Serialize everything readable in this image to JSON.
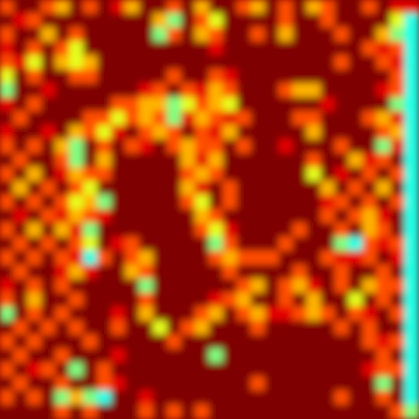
{
  "chart_data": {
    "type": "heatmap",
    "tick_labels": false,
    "zlim": [
      0,
      10
    ],
    "cells": [
      [
        8,
        10,
        10,
        8,
        7,
        10,
        8,
        10,
        9,
        7,
        10,
        10,
        8,
        10,
        7,
        10,
        10,
        8,
        7,
        10,
        8,
        10,
        7,
        8,
        10,
        10,
        8,
        10,
        9,
        9
      ],
      [
        10,
        9,
        8,
        10,
        10,
        10,
        10,
        10,
        10,
        10,
        10,
        7,
        5,
        10,
        8,
        6,
        10,
        10,
        10,
        10,
        8,
        10,
        10,
        8,
        10,
        10,
        10,
        10,
        6,
        4
      ],
      [
        8,
        10,
        10,
        7,
        10,
        8,
        10,
        10,
        10,
        10,
        10,
        5,
        8,
        10,
        7,
        8,
        10,
        10,
        8,
        10,
        7,
        10,
        10,
        10,
        8,
        10,
        10,
        7,
        5,
        4
      ],
      [
        9,
        10,
        8,
        10,
        8,
        6,
        10,
        10,
        10,
        10,
        10,
        10,
        10,
        10,
        10,
        9,
        10,
        10,
        10,
        10,
        10,
        10,
        10,
        10,
        10,
        10,
        8,
        9,
        8,
        4
      ],
      [
        8,
        9,
        6,
        10,
        7,
        6,
        7,
        10,
        10,
        10,
        10,
        10,
        10,
        10,
        10,
        10,
        10,
        10,
        10,
        10,
        10,
        10,
        10,
        10,
        8,
        10,
        10,
        8,
        9,
        4
      ],
      [
        6,
        10,
        8,
        10,
        10,
        8,
        8,
        10,
        10,
        10,
        10,
        10,
        8,
        10,
        10,
        8,
        9,
        10,
        10,
        10,
        10,
        10,
        10,
        10,
        10,
        10,
        10,
        10,
        8,
        4
      ],
      [
        5,
        10,
        10,
        9,
        10,
        10,
        10,
        10,
        10,
        10,
        9,
        8,
        10,
        8,
        9,
        7,
        8,
        10,
        10,
        10,
        8,
        7,
        7,
        10,
        10,
        10,
        10,
        9,
        8,
        4
      ],
      [
        9,
        10,
        8,
        10,
        10,
        10,
        10,
        10,
        8,
        8,
        7,
        7,
        5,
        6,
        8,
        7,
        6,
        10,
        10,
        10,
        10,
        10,
        10,
        9,
        10,
        10,
        10,
        10,
        5,
        4
      ],
      [
        10,
        8,
        10,
        10,
        10,
        10,
        8,
        8,
        6,
        8,
        7,
        8,
        5,
        9,
        7,
        8,
        9,
        8,
        10,
        10,
        10,
        8,
        8,
        10,
        10,
        10,
        8,
        7,
        9,
        4
      ],
      [
        9,
        10,
        10,
        9,
        10,
        7,
        8,
        6,
        9,
        10,
        8,
        7,
        8,
        10,
        8,
        9,
        7,
        10,
        10,
        10,
        10,
        10,
        7,
        10,
        10,
        10,
        10,
        8,
        7,
        4
      ],
      [
        8,
        10,
        8,
        10,
        7,
        5,
        10,
        8,
        10,
        8,
        9,
        10,
        8,
        7,
        8,
        8,
        10,
        8,
        10,
        10,
        9,
        10,
        10,
        10,
        8,
        10,
        10,
        5,
        9,
        4
      ],
      [
        10,
        8,
        10,
        10,
        8,
        5,
        10,
        7,
        10,
        10,
        10,
        10,
        10,
        7,
        9,
        7,
        10,
        10,
        10,
        10,
        10,
        10,
        8,
        10,
        10,
        7,
        9,
        8,
        10,
        4
      ],
      [
        8,
        10,
        7,
        10,
        9,
        7,
        8,
        8,
        10,
        10,
        10,
        10,
        10,
        8,
        7,
        8,
        10,
        10,
        10,
        10,
        10,
        10,
        6,
        10,
        9,
        10,
        8,
        10,
        8,
        4
      ],
      [
        10,
        7,
        10,
        8,
        10,
        8,
        6,
        10,
        10,
        10,
        10,
        10,
        10,
        7,
        9,
        10,
        8,
        10,
        10,
        10,
        10,
        10,
        10,
        7,
        10,
        8,
        10,
        7,
        10,
        4
      ],
      [
        8,
        10,
        8,
        10,
        8,
        6,
        7,
        5,
        10,
        10,
        10,
        10,
        10,
        8,
        6,
        10,
        8,
        10,
        10,
        10,
        10,
        10,
        10,
        9,
        8,
        10,
        8,
        10,
        8,
        4
      ],
      [
        10,
        9,
        10,
        8,
        9,
        7,
        8,
        9,
        10,
        10,
        10,
        10,
        10,
        10,
        7,
        8,
        10,
        10,
        10,
        10,
        10,
        10,
        10,
        8,
        10,
        8,
        7,
        9,
        10,
        4
      ],
      [
        8,
        10,
        7,
        10,
        7,
        9,
        5,
        10,
        10,
        10,
        10,
        10,
        10,
        10,
        8,
        6,
        9,
        10,
        10,
        10,
        10,
        8,
        10,
        10,
        8,
        10,
        7,
        8,
        10,
        4
      ],
      [
        10,
        8,
        10,
        8,
        10,
        8,
        6,
        10,
        9,
        8,
        10,
        10,
        10,
        10,
        10,
        5,
        8,
        10,
        10,
        10,
        8,
        10,
        10,
        10,
        5,
        4,
        8,
        9,
        8,
        4
      ],
      [
        8,
        10,
        8,
        10,
        8,
        9,
        4,
        8,
        10,
        8,
        7,
        10,
        10,
        10,
        10,
        8,
        7,
        8,
        8,
        8,
        10,
        10,
        10,
        8,
        9,
        9,
        8,
        10,
        9,
        4
      ],
      [
        10,
        8,
        10,
        10,
        9,
        7,
        9,
        10,
        10,
        7,
        8,
        10,
        10,
        10,
        10,
        10,
        8,
        10,
        10,
        10,
        10,
        8,
        10,
        10,
        8,
        10,
        10,
        8,
        10,
        4
      ],
      [
        9,
        10,
        8,
        10,
        8,
        10,
        10,
        10,
        10,
        10,
        5,
        10,
        10,
        10,
        10,
        10,
        10,
        8,
        7,
        10,
        8,
        7,
        9,
        10,
        8,
        10,
        7,
        8,
        8,
        4
      ],
      [
        8,
        10,
        7,
        10,
        10,
        8,
        10,
        10,
        10,
        10,
        8,
        10,
        10,
        10,
        10,
        9,
        8,
        7,
        10,
        10,
        8,
        10,
        7,
        10,
        10,
        6,
        10,
        8,
        10,
        4
      ],
      [
        5,
        10,
        8,
        10,
        8,
        10,
        10,
        10,
        9,
        10,
        7,
        10,
        10,
        10,
        8,
        7,
        10,
        8,
        7,
        9,
        9,
        8,
        7,
        8,
        10,
        8,
        9,
        10,
        8,
        4
      ],
      [
        10,
        8,
        10,
        8,
        10,
        8,
        10,
        10,
        8,
        10,
        10,
        6,
        10,
        8,
        7,
        10,
        10,
        10,
        8,
        10,
        10,
        10,
        10,
        10,
        8,
        10,
        8,
        10,
        10,
        4
      ],
      [
        8,
        10,
        8,
        10,
        10,
        10,
        8,
        10,
        10,
        10,
        10,
        10,
        8,
        10,
        10,
        10,
        10,
        10,
        10,
        10,
        10,
        10,
        10,
        10,
        10,
        10,
        8,
        9,
        8,
        4
      ],
      [
        10,
        8,
        10,
        10,
        8,
        10,
        10,
        10,
        9,
        10,
        10,
        10,
        10,
        10,
        10,
        5,
        10,
        10,
        10,
        10,
        10,
        10,
        10,
        10,
        10,
        10,
        10,
        8,
        10,
        4
      ],
      [
        8,
        10,
        9,
        8,
        10,
        5,
        10,
        8,
        10,
        10,
        10,
        10,
        10,
        10,
        10,
        10,
        10,
        10,
        10,
        10,
        10,
        10,
        10,
        10,
        10,
        10,
        9,
        8,
        8,
        4
      ],
      [
        10,
        8,
        10,
        10,
        8,
        10,
        10,
        8,
        9,
        10,
        10,
        10,
        10,
        10,
        10,
        10,
        10,
        10,
        8,
        10,
        10,
        10,
        10,
        10,
        10,
        10,
        10,
        5,
        10,
        4
      ],
      [
        8,
        10,
        8,
        10,
        5,
        7,
        5,
        4,
        10,
        10,
        9,
        10,
        10,
        10,
        10,
        10,
        10,
        10,
        10,
        10,
        10,
        10,
        10,
        10,
        8,
        10,
        10,
        8,
        10,
        4
      ],
      [
        10,
        10,
        10,
        10,
        8,
        10,
        8,
        10,
        10,
        10,
        8,
        10,
        8,
        10,
        8,
        10,
        10,
        10,
        10,
        10,
        10,
        10,
        10,
        10,
        10,
        10,
        10,
        10,
        8,
        5
      ]
    ]
  }
}
